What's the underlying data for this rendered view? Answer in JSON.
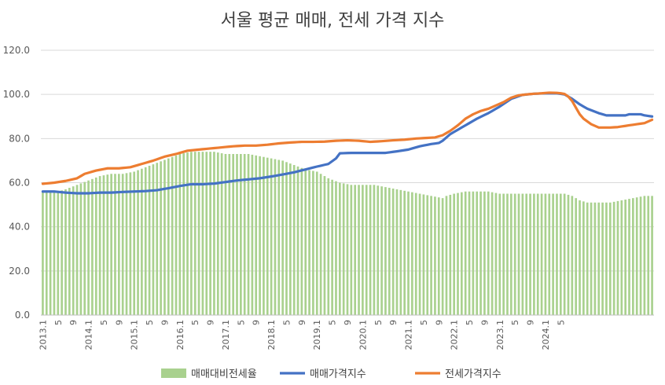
{
  "chart_data": {
    "type": "bar+line",
    "title": "서울 평균 매매, 전세 가격 지수",
    "ylim": [
      0,
      120
    ],
    "yticks": [
      "0.0",
      "20.0",
      "40.0",
      "60.0",
      "80.0",
      "100.0",
      "120.0"
    ],
    "x_tick_labels": [
      "2013.1",
      "5",
      "9",
      "2014.1",
      "5",
      "9",
      "2015.1",
      "5",
      "9",
      "2016.1",
      "5",
      "9",
      "2017.1",
      "5",
      "9",
      "2018.1",
      "5",
      "9",
      "2019.1",
      "5",
      "9",
      "2020.1",
      "5",
      "9",
      "2021.1",
      "5",
      "9",
      "2022.1",
      "5",
      "9",
      "2023.1",
      "5",
      "9",
      "2024.1",
      "5"
    ],
    "grid": "horizontal",
    "legend_position": "bottom",
    "series": [
      {
        "name": "매매대비전세율",
        "type": "bar",
        "color": "#a9d18e",
        "knots": [
          [
            0,
            56
          ],
          [
            2,
            56
          ],
          [
            4,
            56
          ],
          [
            6,
            57
          ],
          [
            9,
            59
          ],
          [
            12,
            61
          ],
          [
            15,
            63
          ],
          [
            18,
            64
          ],
          [
            21,
            64
          ],
          [
            24,
            65
          ],
          [
            27,
            67
          ],
          [
            30,
            69
          ],
          [
            33,
            71
          ],
          [
            36,
            73
          ],
          [
            39,
            74
          ],
          [
            42,
            74
          ],
          [
            45,
            74
          ],
          [
            48,
            73
          ],
          [
            51,
            73
          ],
          [
            54,
            73
          ],
          [
            57,
            72
          ],
          [
            60,
            71
          ],
          [
            63,
            70
          ],
          [
            66,
            68
          ],
          [
            69,
            66
          ],
          [
            72,
            65
          ],
          [
            75,
            62
          ],
          [
            78,
            60
          ],
          [
            81,
            59
          ],
          [
            84,
            59
          ],
          [
            87,
            59
          ],
          [
            90,
            58
          ],
          [
            93,
            57
          ],
          [
            96,
            56
          ],
          [
            99,
            55
          ],
          [
            102,
            54
          ],
          [
            105,
            53
          ],
          [
            106,
            54
          ],
          [
            108,
            55
          ],
          [
            111,
            56
          ],
          [
            114,
            56
          ],
          [
            117,
            56
          ],
          [
            120,
            55
          ],
          [
            123,
            55
          ],
          [
            126,
            55
          ],
          [
            129,
            55
          ],
          [
            132,
            55
          ],
          [
            135,
            55
          ],
          [
            137,
            55
          ],
          [
            139,
            54
          ],
          [
            141,
            52
          ],
          [
            143,
            51
          ],
          [
            146,
            51
          ],
          [
            149,
            51
          ],
          [
            152,
            52
          ],
          [
            155,
            53
          ],
          [
            158,
            54
          ],
          [
            160,
            54
          ]
        ]
      },
      {
        "name": "매매가격지수",
        "type": "line",
        "color": "#4472c4",
        "knots": [
          [
            0,
            56
          ],
          [
            3,
            56
          ],
          [
            6,
            55.5
          ],
          [
            9,
            55.2
          ],
          [
            12,
            55.2
          ],
          [
            15,
            55.5
          ],
          [
            18,
            55.5
          ],
          [
            21,
            55.8
          ],
          [
            24,
            56
          ],
          [
            27,
            56.2
          ],
          [
            30,
            56.6
          ],
          [
            33,
            57.5
          ],
          [
            36,
            58.5
          ],
          [
            39,
            59.3
          ],
          [
            42,
            59.3
          ],
          [
            45,
            59.6
          ],
          [
            48,
            60.3
          ],
          [
            51,
            61
          ],
          [
            54,
            61.5
          ],
          [
            57,
            62
          ],
          [
            60,
            62.8
          ],
          [
            63,
            63.7
          ],
          [
            66,
            64.7
          ],
          [
            69,
            66
          ],
          [
            72,
            67.3
          ],
          [
            75,
            68.5
          ],
          [
            77,
            71
          ],
          [
            78,
            73.3
          ],
          [
            81,
            73.5
          ],
          [
            84,
            73.5
          ],
          [
            87,
            73.5
          ],
          [
            90,
            73.5
          ],
          [
            93,
            74.2
          ],
          [
            96,
            75
          ],
          [
            99,
            76.5
          ],
          [
            102,
            77.5
          ],
          [
            104,
            78
          ],
          [
            105,
            79
          ],
          [
            107,
            82
          ],
          [
            109,
            84
          ],
          [
            111,
            86
          ],
          [
            114,
            89
          ],
          [
            117,
            91.5
          ],
          [
            120,
            94.5
          ],
          [
            123,
            98
          ],
          [
            126,
            99.8
          ],
          [
            129,
            100.3
          ],
          [
            132,
            100.5
          ],
          [
            135,
            100.5
          ],
          [
            137,
            100
          ],
          [
            139,
            98
          ],
          [
            141,
            95.5
          ],
          [
            143,
            93.5
          ],
          [
            146,
            91.5
          ],
          [
            148,
            90.5
          ],
          [
            151,
            90.5
          ],
          [
            153,
            90.5
          ],
          [
            154,
            91
          ],
          [
            157,
            91
          ],
          [
            158,
            90.5
          ],
          [
            160,
            90
          ]
        ]
      },
      {
        "name": "전세가격지수",
        "type": "line",
        "color": "#ed7d31",
        "knots": [
          [
            0,
            59.5
          ],
          [
            3,
            60
          ],
          [
            6,
            60.8
          ],
          [
            9,
            62
          ],
          [
            11,
            64
          ],
          [
            14,
            65.5
          ],
          [
            17,
            66.5
          ],
          [
            20,
            66.5
          ],
          [
            23,
            67
          ],
          [
            26,
            68.5
          ],
          [
            29,
            70
          ],
          [
            32,
            71.8
          ],
          [
            35,
            73
          ],
          [
            38,
            74.5
          ],
          [
            41,
            75
          ],
          [
            44,
            75.5
          ],
          [
            47,
            76
          ],
          [
            50,
            76.5
          ],
          [
            53,
            76.8
          ],
          [
            56,
            76.8
          ],
          [
            59,
            77.2
          ],
          [
            62,
            77.8
          ],
          [
            65,
            78.2
          ],
          [
            68,
            78.5
          ],
          [
            71,
            78.5
          ],
          [
            74,
            78.6
          ],
          [
            77,
            79
          ],
          [
            80,
            79.2
          ],
          [
            83,
            79
          ],
          [
            86,
            78.5
          ],
          [
            89,
            78.8
          ],
          [
            92,
            79.2
          ],
          [
            95,
            79.5
          ],
          [
            98,
            80
          ],
          [
            101,
            80.3
          ],
          [
            103,
            80.5
          ],
          [
            105,
            81.5
          ],
          [
            107,
            83.5
          ],
          [
            109,
            86
          ],
          [
            111,
            89
          ],
          [
            113,
            91
          ],
          [
            115,
            92.5
          ],
          [
            117,
            93.5
          ],
          [
            119,
            95
          ],
          [
            121,
            96.5
          ],
          [
            123,
            98.5
          ],
          [
            125,
            99.6
          ],
          [
            127,
            100
          ],
          [
            129,
            100.3
          ],
          [
            131,
            100.5
          ],
          [
            133,
            100.8
          ],
          [
            135,
            100.7
          ],
          [
            136,
            100.5
          ],
          [
            137,
            100.2
          ],
          [
            138,
            99
          ],
          [
            139,
            97
          ],
          [
            140,
            94
          ],
          [
            141,
            91
          ],
          [
            142,
            89
          ],
          [
            144,
            86.5
          ],
          [
            146,
            85
          ],
          [
            149,
            85
          ],
          [
            151,
            85.2
          ],
          [
            154,
            86
          ],
          [
            156,
            86.5
          ],
          [
            158,
            87
          ],
          [
            160,
            88.5
          ]
        ]
      }
    ]
  }
}
